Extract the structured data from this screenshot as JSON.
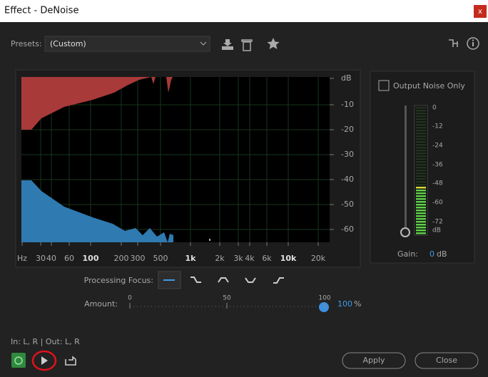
{
  "window": {
    "title": "Effect - DeNoise",
    "close": "x"
  },
  "presets": {
    "label": "Presets:",
    "value": "(Custom)"
  },
  "spectrum": {
    "db_labels": [
      "dB",
      "-10",
      "-20",
      "-30",
      "-40",
      "-50",
      "-60"
    ],
    "freq_labels": [
      "Hz",
      "30",
      "40",
      "60",
      "100",
      "200",
      "300",
      "500",
      "1k",
      "2k",
      "3k",
      "4k",
      "6k",
      "10k",
      "20k"
    ]
  },
  "output_noise_only": "Output Noise Only",
  "meter": {
    "labels": [
      "0",
      "-12",
      "-24",
      "-36",
      "-48",
      "-60",
      "-72",
      "dB"
    ]
  },
  "gain": {
    "label": "Gain:",
    "value": "0",
    "unit": "dB"
  },
  "processing_focus": "Processing Focus:",
  "amount": {
    "label": "Amount:",
    "ticks": [
      "0",
      "50",
      "100"
    ],
    "value": "100",
    "unit": "%"
  },
  "io": "In: L, R | Out: L, R",
  "buttons": {
    "apply": "Apply",
    "close": "Close"
  }
}
